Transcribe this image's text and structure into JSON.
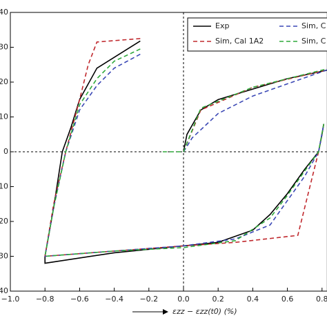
{
  "chart_data": {
    "type": "line",
    "x_label": "εzz − εzz(t0)  (%)",
    "xlim": [
      -1.0,
      0.83
    ],
    "ylim": [
      -40,
      40
    ],
    "xticks": [
      {
        "value": -1.0,
        "label": "−1.0"
      },
      {
        "value": -0.8,
        "label": "−0.8"
      },
      {
        "value": -0.6,
        "label": "−0.6"
      },
      {
        "value": -0.4,
        "label": "−0.4"
      },
      {
        "value": -0.2,
        "label": "−0.2"
      },
      {
        "value": 0,
        "label": "0.0"
      },
      0.2,
      0.4,
      0.6,
      0.8
    ],
    "yticks": [
      {
        "value": -40,
        "label": "40"
      },
      {
        "value": -30,
        "label": "30"
      },
      {
        "value": -20,
        "label": "20"
      },
      {
        "value": -10,
        "label": "10"
      },
      0,
      10,
      20,
      30,
      40
    ],
    "series": [
      {
        "name": "Exp",
        "color": "#000000",
        "dash": "none",
        "x": [
          0,
          0.02,
          0.1,
          0.2,
          0.4,
          0.6,
          0.83,
          null,
          -0.25,
          -0.5,
          -0.6,
          -0.65,
          -0.7,
          -0.75,
          -0.8,
          -0.8,
          -0.4,
          0,
          0.2,
          0.4,
          0.5,
          0.6,
          0.7,
          0.78,
          0.8,
          0.81
        ],
        "values": [
          0,
          5,
          12,
          15,
          18,
          21,
          23.4,
          null,
          31.8,
          24,
          15,
          7,
          0,
          -16,
          -30,
          -32,
          -29,
          -27,
          -26,
          -22.5,
          -18,
          -12,
          -5,
          0,
          5,
          8
        ]
      },
      {
        "name": "Sim, Cal 1A2",
        "color": "#c0282d",
        "dash": "6 4",
        "x": [
          0,
          0.1,
          0.4,
          0.83,
          null,
          -0.25,
          -0.5,
          -0.55,
          -0.6,
          -0.68,
          -0.75,
          -0.8,
          -0.4,
          0,
          0.3,
          0.66,
          0.72,
          0.78,
          0.81
        ],
        "values": [
          0,
          12,
          18.5,
          23.5,
          null,
          32.5,
          31.5,
          25,
          15,
          0,
          -15,
          -30,
          -28.5,
          -27,
          -26,
          -24,
          -12,
          0,
          8
        ]
      },
      {
        "name": "Sim, C",
        "color": "#3a47b5",
        "dash": "6 4",
        "x": [
          0,
          0.05,
          0.2,
          0.4,
          0.83,
          null,
          -0.25,
          -0.4,
          -0.5,
          -0.6,
          -0.68,
          -0.75,
          -0.8,
          -0.4,
          0,
          0.3,
          0.5,
          0.6,
          0.7,
          0.78,
          0.81
        ],
        "values": [
          0,
          4,
          11,
          16,
          23.5,
          null,
          28,
          24,
          19,
          12,
          0,
          -16,
          -30,
          -28.5,
          -27,
          -25,
          -21,
          -14,
          -7,
          0,
          8
        ]
      },
      {
        "name": "Sim, C",
        "color": "#2ea83a",
        "dash": "6 4",
        "x": [
          -0.12,
          0,
          0.1,
          0.4,
          0.83,
          null,
          -0.25,
          -0.4,
          -0.5,
          -0.6,
          -0.68,
          -0.75,
          -0.8,
          -0.4,
          0,
          0.3,
          0.5,
          0.6,
          0.7,
          0.78,
          0.81
        ],
        "values": [
          0,
          0,
          12.5,
          18.5,
          23.8,
          null,
          29.5,
          26,
          21,
          13.5,
          0,
          -16,
          -30,
          -28.5,
          -27.5,
          -25.5,
          -19,
          -12.5,
          -5.5,
          0,
          8
        ]
      }
    ]
  }
}
